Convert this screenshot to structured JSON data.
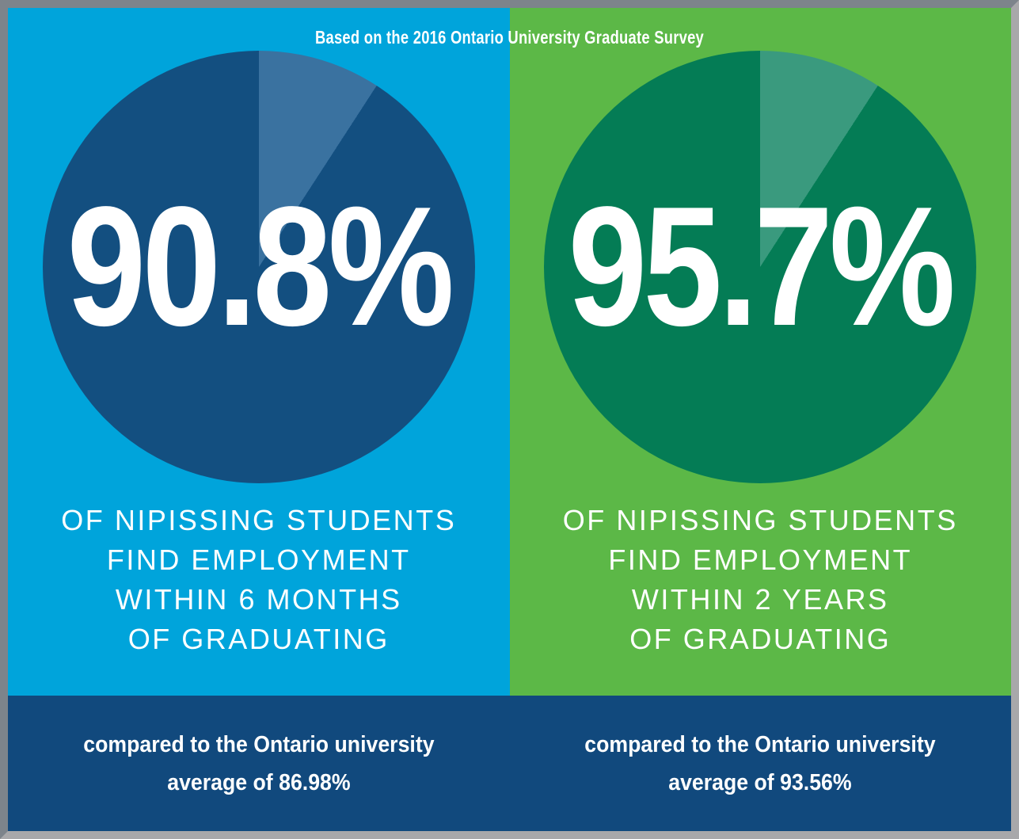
{
  "header": {
    "survey_note": "Based on the 2016 Ontario University Graduate Survey"
  },
  "chart_data": [
    {
      "type": "pie",
      "label": "90.8%",
      "slices": [
        {
          "name": "nipissing-students-employed-within-6-months",
          "value": 90.8,
          "color": "#134f80"
        },
        {
          "name": "remainder",
          "value": 9.2,
          "color": "#3a72a0"
        }
      ],
      "start_angle_deg": 0,
      "displayed_remainder_deg": 33,
      "panel_background": "#00a4db",
      "ontario_average_pct": 86.98
    },
    {
      "type": "pie",
      "label": "95.7%",
      "slices": [
        {
          "name": "nipissing-students-employed-within-2-years",
          "value": 95.7,
          "color": "#047c55"
        },
        {
          "name": "remainder",
          "value": 4.3,
          "color": "#3a9a7e"
        }
      ],
      "start_angle_deg": 0,
      "displayed_remainder_deg": 33,
      "panel_background": "#5cb847",
      "ontario_average_pct": 93.56
    }
  ],
  "panels": [
    {
      "caption": "OF NIPISSING STUDENTS\nFIND EMPLOYMENT\nWITHIN 6 MONTHS\nOF GRADUATING",
      "comparison": "compared to the Ontario university\naverage of 86.98%"
    },
    {
      "caption": "OF NIPISSING STUDENTS\nFIND EMPLOYMENT\nWITHIN 2 YEARS\nOF GRADUATING",
      "comparison": "compared to the Ontario university\naverage of 93.56%"
    }
  ],
  "colors": {
    "band": "#11497d",
    "frame_top_left": "#7d848b",
    "frame_bottom_right": "#a8a8aa",
    "text": "#ffffff"
  }
}
